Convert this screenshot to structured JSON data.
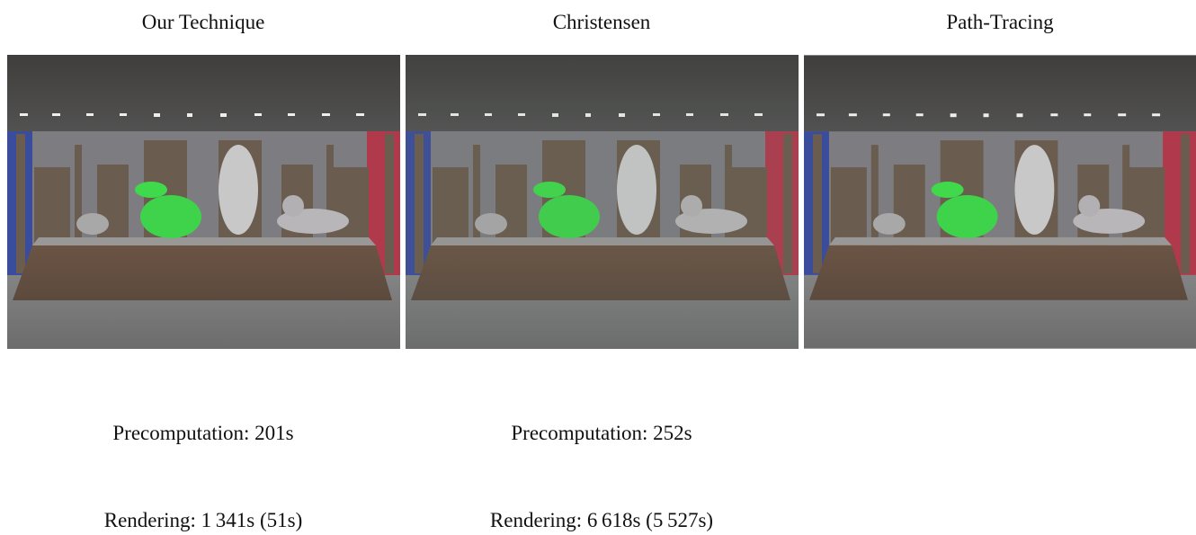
{
  "columns": [
    {
      "title": "Our Technique",
      "precomputation": "Precomputation: 201s",
      "rendering": "Rendering: 1 341s (51s)"
    },
    {
      "title": "Christensen",
      "precomputation": "Precomputation: 252s",
      "rendering": "Rendering: 6 618s (5 527s)"
    },
    {
      "title": "Path-Tracing"
    }
  ]
}
